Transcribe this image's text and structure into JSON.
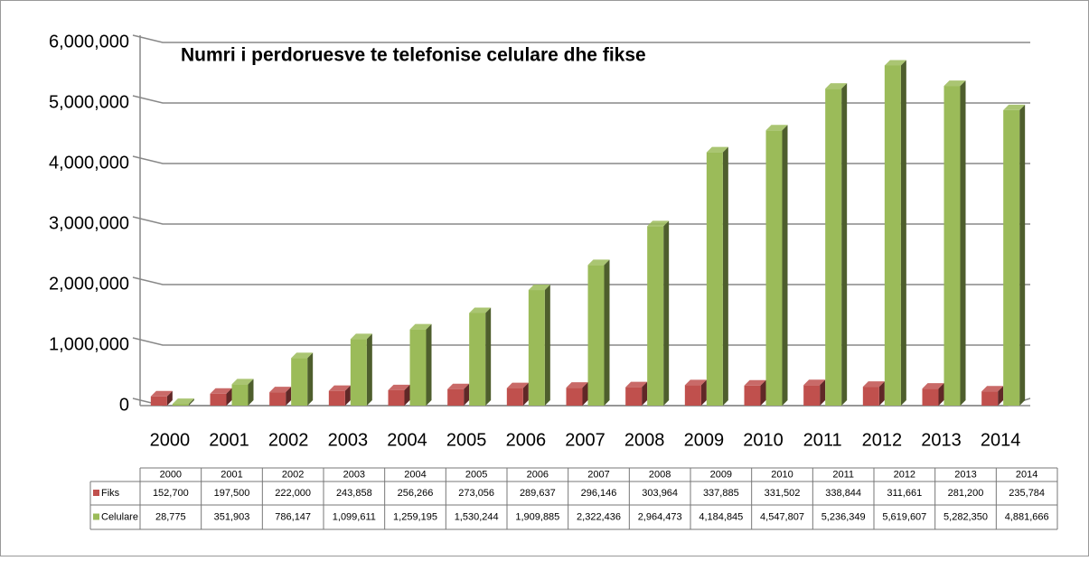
{
  "chart_data": {
    "type": "bar",
    "title": "Numri i perdoruesve te telefonise celulare dhe fikse",
    "categories": [
      "2000",
      "2001",
      "2002",
      "2003",
      "2004",
      "2005",
      "2006",
      "2007",
      "2008",
      "2009",
      "2010",
      "2011",
      "2012",
      "2013",
      "2014"
    ],
    "series": [
      {
        "name": "Fiks",
        "color": "#c0504d",
        "values": [
          152700,
          197500,
          222000,
          243858,
          256266,
          273056,
          289637,
          296146,
          303964,
          337885,
          331502,
          338844,
          311661,
          281200,
          235784
        ],
        "value_labels": [
          "152,700",
          "197,500",
          "222,000",
          "243,858",
          "256,266",
          "273,056",
          "289,637",
          "296,146",
          "303,964",
          "337,885",
          "331,502",
          "338,844",
          "311,661",
          "281,200",
          "235,784"
        ]
      },
      {
        "name": "Celulare",
        "color": "#9bbb59",
        "values": [
          28775,
          351903,
          786147,
          1099611,
          1259195,
          1530244,
          1909885,
          2322436,
          2964473,
          4184845,
          4547807,
          5236349,
          5619607,
          5282350,
          4881666
        ],
        "value_labels": [
          "28,775",
          "351,903",
          "786,147",
          "1,099,611",
          "1,259,195",
          "1,530,244",
          "1,909,885",
          "2,322,436",
          "2,964,473",
          "4,184,845",
          "4,547,807",
          "5,236,349",
          "5,619,607",
          "5,282,350",
          "4,881,666"
        ]
      }
    ],
    "ylim": [
      0,
      6000000
    ],
    "yticks": [
      0,
      {
        "value": 1000000,
        "label": "1,000,000"
      },
      {
        "value": 2000000,
        "label": "2,000,000"
      },
      {
        "value": 3000000,
        "label": "3,000,000"
      },
      {
        "value": 4000000,
        "label": "4,000,000"
      },
      {
        "value": 5000000,
        "label": "5,000,000"
      },
      {
        "value": 6000000,
        "label": "6,000,000"
      }
    ],
    "grid": true
  }
}
